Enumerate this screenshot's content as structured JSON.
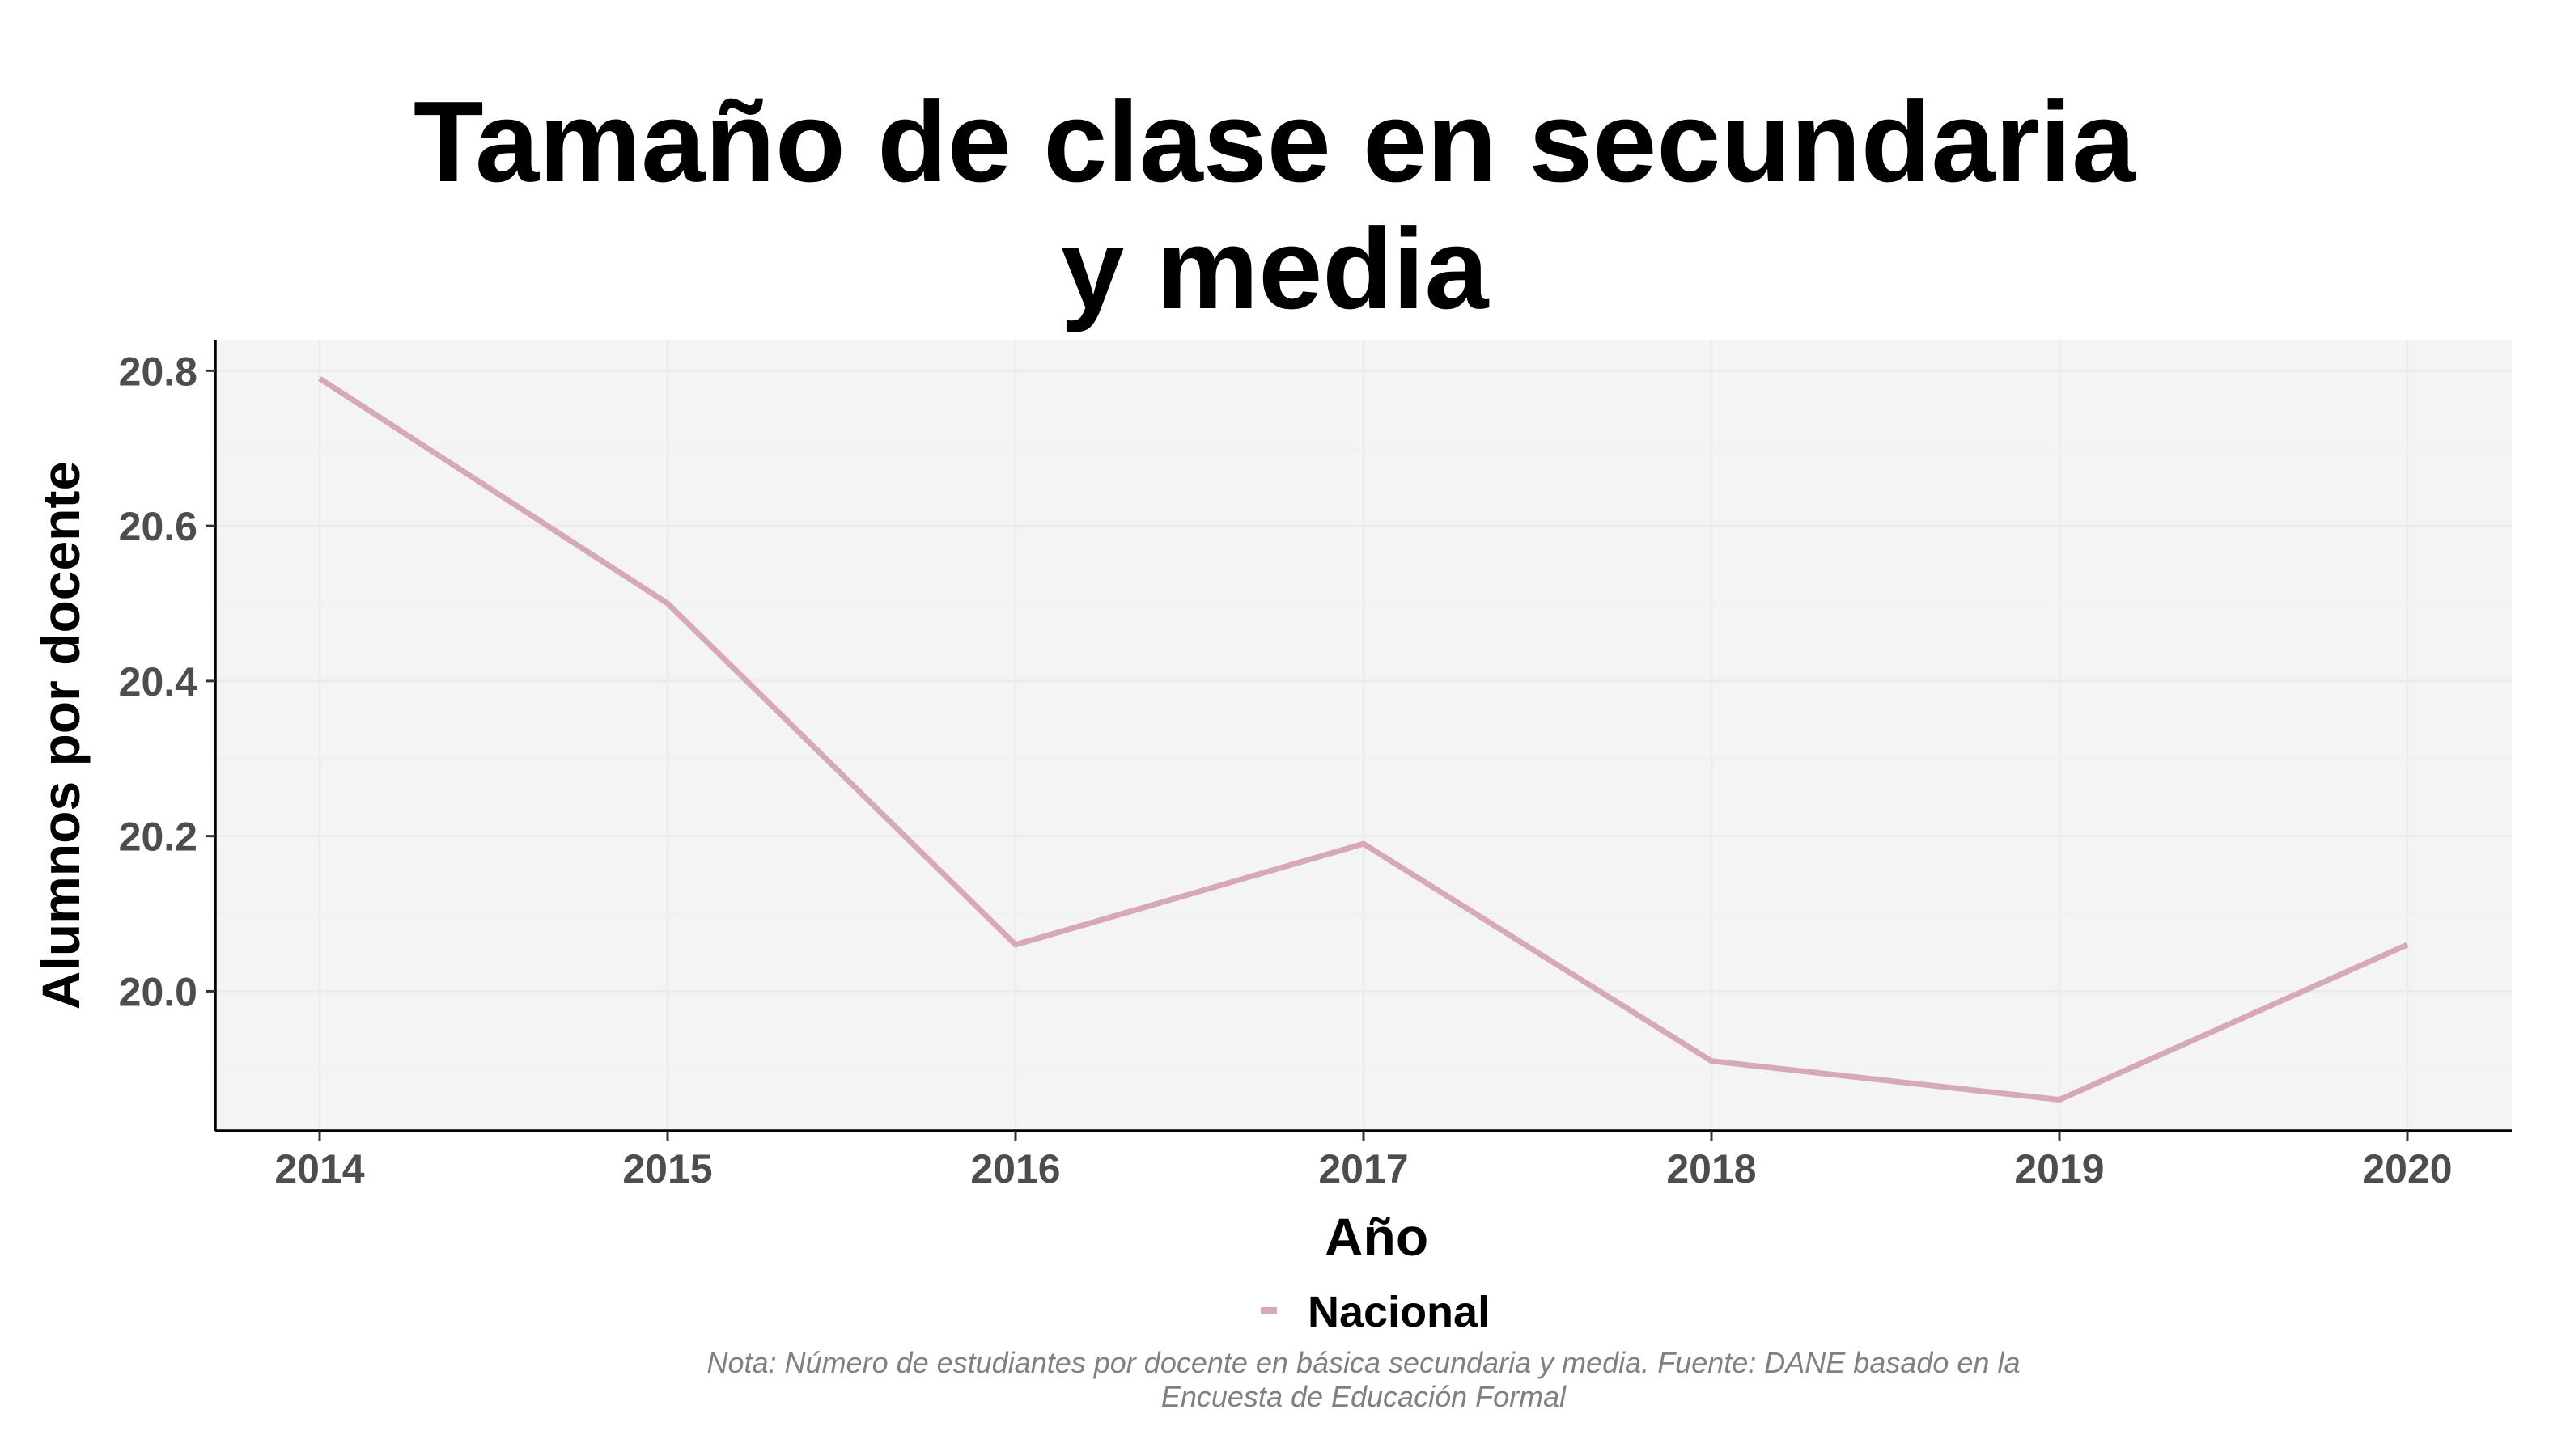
{
  "chart_data": {
    "type": "line",
    "title_lines": [
      "Tamaño de clase en secundaria",
      "y media"
    ],
    "xlabel": "Año",
    "ylabel": "Alumnos por docente",
    "x": [
      2014,
      2015,
      2016,
      2017,
      2018,
      2019,
      2020
    ],
    "x_ticks": [
      "2014",
      "2015",
      "2016",
      "2017",
      "2018",
      "2019",
      "2020"
    ],
    "y_ticks": [
      "20.0",
      "20.2",
      "20.4",
      "20.6",
      "20.8"
    ],
    "y_tick_values": [
      20.0,
      20.2,
      20.4,
      20.6,
      20.8
    ],
    "ylim": [
      19.82,
      20.84
    ],
    "xlim": [
      2013.7,
      2020.3
    ],
    "series": [
      {
        "name": "Nacional",
        "color": "#d6a9b5",
        "values": [
          20.79,
          20.5,
          20.06,
          20.19,
          19.91,
          19.86,
          20.06
        ]
      }
    ],
    "legend": {
      "position": "bottom",
      "entries": [
        "Nacional"
      ]
    },
    "grid": true,
    "panel_background": "#f4f4f4",
    "caption_lines": [
      "Nota: Número de estudiantes por docente en básica secundaria y media. Fuente: DANE basado en la",
      "Encuesta de Educación Formal"
    ]
  }
}
